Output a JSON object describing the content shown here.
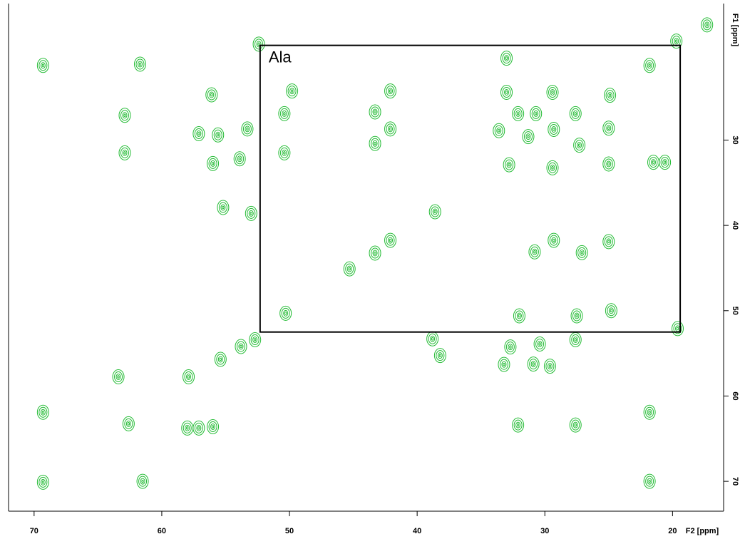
{
  "chart_data": {
    "type": "scatter",
    "x_label": "F2 [ppm]",
    "y_label": "F1 [ppm]",
    "xlim": [
      72,
      16
    ],
    "ylim": [
      14,
      73.5
    ],
    "xticks": [
      70,
      60,
      50,
      40,
      30,
      20
    ],
    "yticks": [
      30,
      40,
      50,
      60,
      70
    ],
    "color": "#22bb33",
    "x": [
      69.3,
      61.7,
      52.4,
      62.9,
      62.9,
      56.1,
      57.1,
      55.6,
      56.0,
      53.9,
      53.3,
      55.2,
      53.0,
      50.4,
      50.4,
      49.8,
      43.3,
      43.3,
      42.1,
      42.1,
      38.6,
      42.1,
      43.3,
      45.3,
      50.3,
      33.0,
      33.0,
      32.1,
      33.6,
      30.7,
      29.4,
      27.6,
      29.3,
      31.3,
      32.8,
      29.4,
      27.3,
      24.9,
      25.0,
      25.0,
      21.8,
      19.7,
      17.3,
      21.5,
      20.6,
      29.3,
      27.1,
      25.0,
      30.8,
      32.0,
      27.5,
      24.8,
      19.6,
      38.8,
      38.2,
      32.7,
      33.2,
      30.9,
      29.6,
      27.6,
      30.4,
      63.4,
      52.7,
      55.4,
      57.9,
      53.8,
      62.6,
      69.3,
      58.0,
      57.1,
      56.0,
      32.1,
      27.6,
      21.8,
      69.3,
      61.5,
      21.8
    ],
    "values": [
      21.25,
      21.1,
      18.75,
      27.1,
      31.5,
      24.7,
      29.25,
      29.4,
      32.75,
      32.2,
      28.7,
      37.9,
      38.6,
      26.9,
      31.5,
      24.25,
      26.7,
      30.4,
      24.25,
      28.7,
      38.4,
      41.75,
      43.25,
      45.1,
      50.3,
      20.4,
      24.4,
      26.9,
      28.9,
      26.9,
      24.4,
      26.9,
      28.75,
      29.6,
      32.9,
      33.25,
      30.6,
      24.75,
      28.6,
      32.8,
      21.25,
      18.4,
      16.5,
      32.6,
      32.6,
      41.75,
      43.2,
      41.9,
      43.1,
      50.6,
      50.6,
      50.0,
      52.1,
      53.3,
      55.25,
      54.25,
      56.3,
      56.25,
      56.5,
      53.4,
      53.9,
      57.75,
      53.4,
      55.7,
      57.75,
      54.2,
      63.25,
      61.9,
      63.75,
      63.75,
      63.6,
      63.4,
      63.4,
      61.9,
      70.1,
      70.0,
      70.0
    ],
    "annotations": [
      {
        "label": "Ala",
        "x": [
          52.3,
          19.4
        ],
        "y": [
          18.9,
          52.5
        ]
      }
    ]
  }
}
